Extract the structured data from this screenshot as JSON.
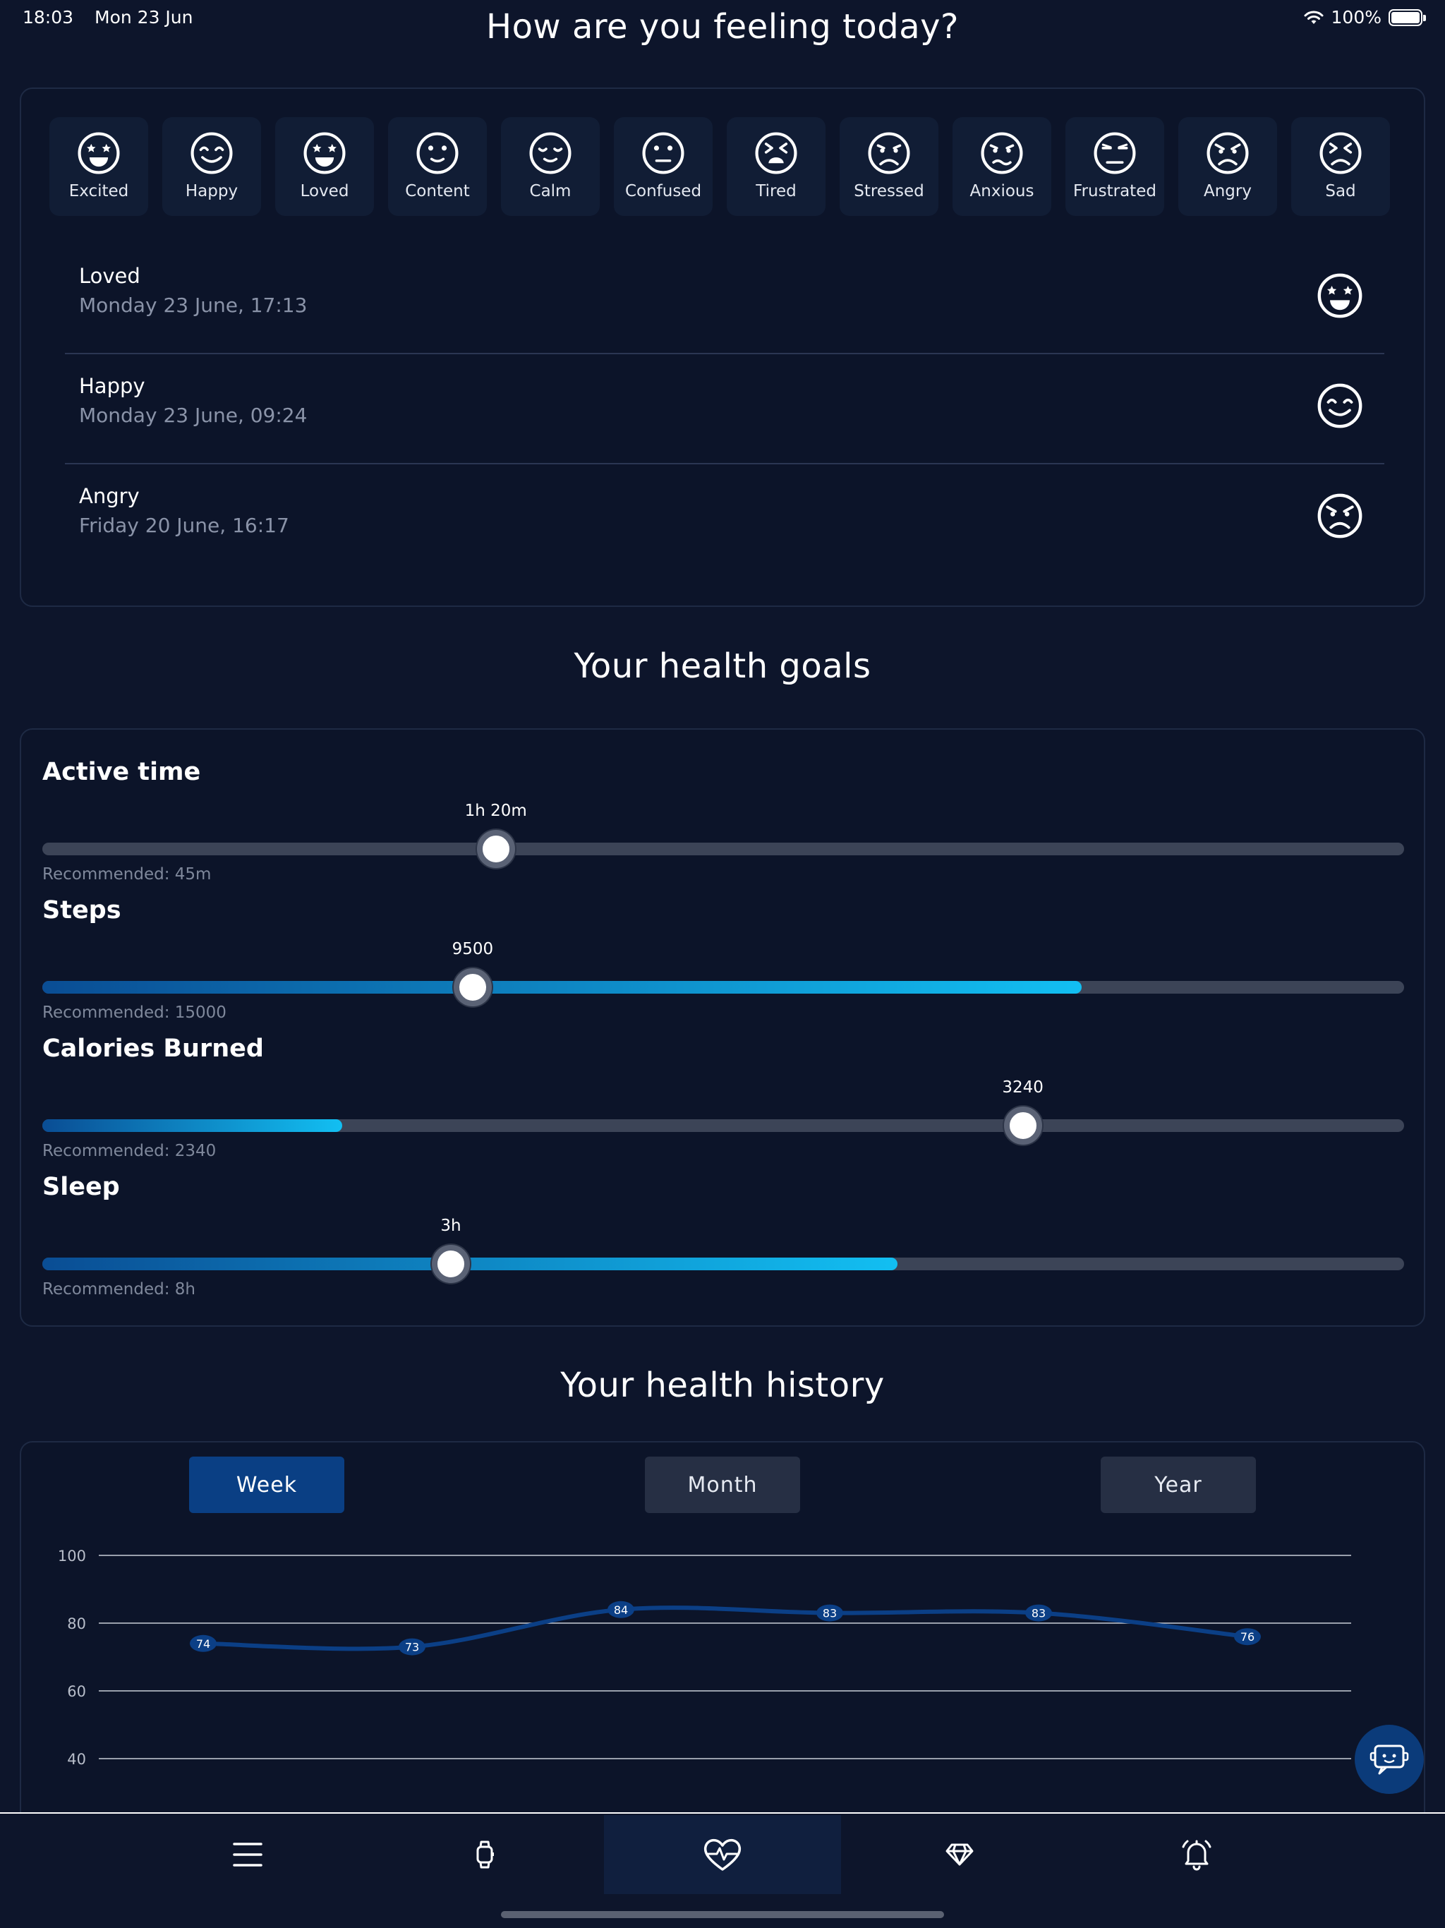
{
  "status_bar": {
    "time": "18:03",
    "date": "Mon 23 Jun",
    "battery": "100%"
  },
  "mood_section": {
    "title": "How are you feeling today?",
    "moods": [
      {
        "label": "Excited",
        "icon": "excited-face-icon"
      },
      {
        "label": "Happy",
        "icon": "happy-face-icon"
      },
      {
        "label": "Loved",
        "icon": "loved-face-icon"
      },
      {
        "label": "Content",
        "icon": "content-face-icon"
      },
      {
        "label": "Calm",
        "icon": "calm-face-icon"
      },
      {
        "label": "Confused",
        "icon": "confused-face-icon"
      },
      {
        "label": "Tired",
        "icon": "tired-face-icon"
      },
      {
        "label": "Stressed",
        "icon": "stressed-face-icon"
      },
      {
        "label": "Anxious",
        "icon": "anxious-face-icon"
      },
      {
        "label": "Frustrated",
        "icon": "frustrated-face-icon"
      },
      {
        "label": "Angry",
        "icon": "angry-face-icon"
      },
      {
        "label": "Sad",
        "icon": "sad-face-icon"
      }
    ],
    "entries": [
      {
        "mood": "Loved",
        "time": "Monday 23 June, 17:13",
        "icon": "loved-face-icon"
      },
      {
        "mood": "Happy",
        "time": "Monday 23 June, 09:24",
        "icon": "happy-face-icon"
      },
      {
        "mood": "Angry",
        "time": "Friday 20 June, 16:17",
        "icon": "angry-face-icon"
      }
    ]
  },
  "goals_section": {
    "title": "Your health goals",
    "goals": [
      {
        "name": "Active time",
        "value_label": "1h 20m",
        "recommended": "Recommended: 45m",
        "thumb_fraction": 0.333,
        "fill_fraction": 0
      },
      {
        "name": "Steps",
        "value_label": "9500",
        "recommended": "Recommended: 15000",
        "thumb_fraction": 0.316,
        "fill_fraction": 0.763
      },
      {
        "name": "Calories Burned",
        "value_label": "3240",
        "recommended": "Recommended: 2340",
        "thumb_fraction": 0.72,
        "fill_fraction": 0.22
      },
      {
        "name": "Sleep",
        "value_label": "3h",
        "recommended": "Recommended: 8h",
        "thumb_fraction": 0.3,
        "fill_fraction": 0.628
      }
    ]
  },
  "history_section": {
    "title": "Your health history",
    "tabs": [
      {
        "label": "Week",
        "active": true
      },
      {
        "label": "Month",
        "active": false
      },
      {
        "label": "Year",
        "active": false
      }
    ]
  },
  "chart_data": {
    "type": "line",
    "x": [
      1,
      2,
      3,
      4,
      5,
      6
    ],
    "series": [
      {
        "values": [
          74,
          73,
          84,
          83,
          83,
          76
        ]
      }
    ],
    "y_ticks": [
      40,
      60,
      80,
      100
    ],
    "ylim": [
      40,
      100
    ],
    "grid": true,
    "line_color": "#0b3f86"
  },
  "nav": {
    "items": [
      {
        "icon": "menu-icon",
        "active": false
      },
      {
        "icon": "watch-icon",
        "active": false
      },
      {
        "icon": "heart-pulse-icon",
        "active": true
      },
      {
        "icon": "diamond-icon",
        "active": false
      },
      {
        "icon": "alarm-bell-icon",
        "active": false
      }
    ]
  },
  "colors": {
    "background": "#0d152b",
    "accent": "#12bff2",
    "active_tab": "#0a3f84"
  }
}
